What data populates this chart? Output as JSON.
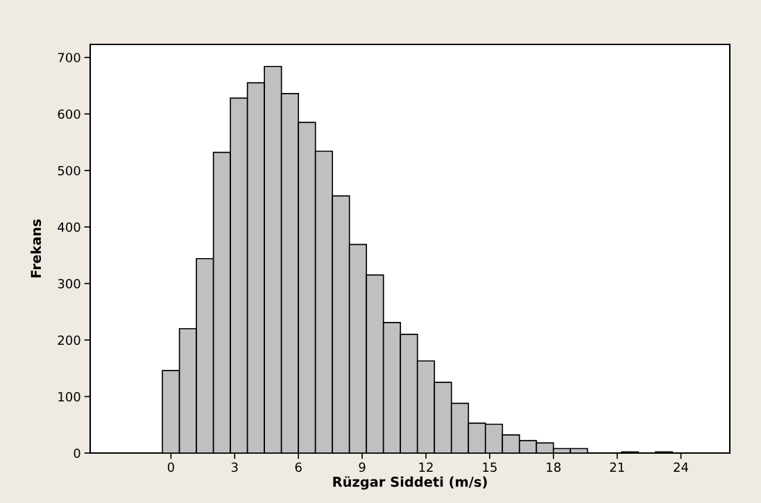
{
  "chart_data": {
    "type": "histogram",
    "xlabel": "Rüzgar Siddeti (m/s)",
    "ylabel": "Frekans",
    "bins": [
      -0.4,
      0.4,
      1.2,
      2.0,
      2.8,
      3.6,
      4.4,
      5.2,
      6.0,
      6.8,
      7.6,
      8.4,
      9.2,
      10.0,
      10.8,
      11.6,
      12.4,
      13.2,
      14.0,
      14.8,
      15.6,
      16.4,
      17.2,
      18.0,
      18.8,
      19.6,
      20.4,
      21.2,
      22.0,
      22.8,
      23.6
    ],
    "values": [
      146,
      220,
      344,
      532,
      628,
      655,
      684,
      636,
      585,
      534,
      455,
      369,
      315,
      231,
      210,
      163,
      125,
      88,
      53,
      51,
      32,
      22,
      18,
      8,
      8,
      0,
      0,
      2,
      0,
      2
    ],
    "color": "#c0c0c0",
    "xlim": [
      -3.8,
      26.3
    ],
    "ylim": [
      0,
      723
    ],
    "xticks": [
      0,
      3,
      6,
      9,
      12,
      15,
      18,
      21,
      24
    ],
    "yticks": [
      0,
      100,
      200,
      300,
      400,
      500,
      600,
      700
    ],
    "grid": false
  }
}
